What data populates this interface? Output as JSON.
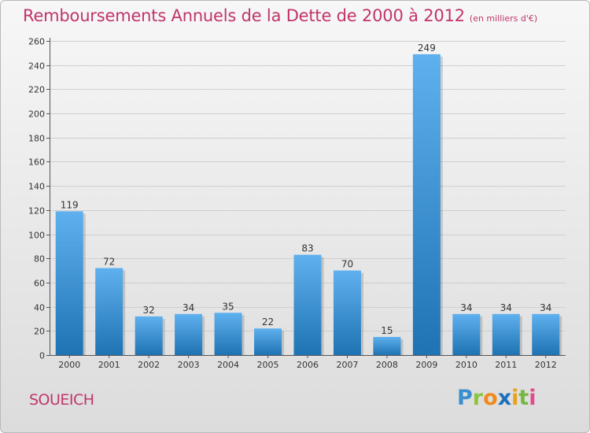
{
  "chart_title": "Remboursements Annuels de la Dette de 2000 à 2012",
  "chart_subtitle": "(en milliers d'€)",
  "commune": "SOUEICH",
  "brand": {
    "letters": [
      "P",
      "r",
      "o",
      "x",
      "i",
      "t",
      "i"
    ]
  },
  "colors": {
    "title": "#c0356b",
    "bar_top": "#5fb0ee",
    "bar_bottom": "#1f73b3",
    "grid": "#cfcfcf"
  },
  "chart_data": {
    "type": "bar",
    "title": "Remboursements Annuels de la Dette de 2000 à 2012",
    "subtitle": "(en milliers d'€)",
    "xlabel": "",
    "ylabel": "",
    "categories": [
      "2000",
      "2001",
      "2002",
      "2003",
      "2004",
      "2005",
      "2006",
      "2007",
      "2008",
      "2009",
      "2010",
      "2011",
      "2012"
    ],
    "values": [
      119,
      72,
      32,
      34,
      35,
      22,
      83,
      70,
      15,
      249,
      34,
      34,
      34
    ],
    "value_labels": [
      "119",
      "72",
      "32",
      "34",
      "35",
      "22",
      "83",
      "70",
      "15",
      "249",
      "34",
      "34",
      "34"
    ],
    "ylim": [
      0,
      260
    ],
    "yticks": [
      0,
      20,
      40,
      60,
      80,
      100,
      120,
      140,
      160,
      180,
      200,
      220,
      240,
      260
    ],
    "ytick_labels": [
      "0",
      "20",
      "40",
      "60",
      "80",
      "100",
      "120",
      "140",
      "160",
      "180",
      "200",
      "220",
      "240",
      "260"
    ],
    "grid": "horizontal",
    "legend": "none"
  }
}
